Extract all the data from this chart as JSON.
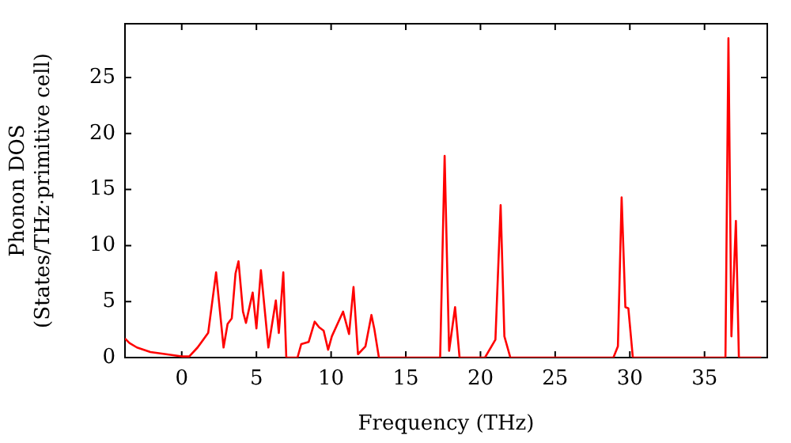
{
  "chart_data": {
    "type": "line",
    "xlabel": "Frequency (THz)",
    "ylabel": "Phonon DOS\n(States/THz·primitive cell)",
    "xlim": [
      -3.8,
      39.2
    ],
    "ylim": [
      0,
      29.8
    ],
    "xticks": [
      0,
      5,
      10,
      15,
      20,
      25,
      30,
      35
    ],
    "yticks": [
      0,
      5,
      10,
      15,
      20,
      25
    ],
    "grid": false,
    "legend": false,
    "marker": "none",
    "line_style": "solid",
    "series": [
      {
        "color": "#ff0000",
        "x": [
          -3.8,
          -3.5,
          -3.0,
          -2.1,
          0,
          0.5,
          1.06,
          1.77,
          2.3,
          2.8,
          3.07,
          3.35,
          3.6,
          3.8,
          4.1,
          4.3,
          4.75,
          5.0,
          5.3,
          5.8,
          6.3,
          6.5,
          6.8,
          7.0,
          7.75,
          8.0,
          8.5,
          8.9,
          9.2,
          9.5,
          9.8,
          10.05,
          10.8,
          11.2,
          11.5,
          11.8,
          12.3,
          12.7,
          12.9,
          13.2,
          17.3,
          17.6,
          17.9,
          18.3,
          18.6,
          20.3,
          21.0,
          21.35,
          21.6,
          22.0,
          28.9,
          29.2,
          29.45,
          29.7,
          29.9,
          30.2,
          36.4,
          36.6,
          36.8,
          37.1,
          37.3,
          38.8
        ],
        "values": [
          1.7,
          1.3,
          0.9,
          0.5,
          0.1,
          0.1,
          0.9,
          2.2,
          7.6,
          0.9,
          3.0,
          3.5,
          7.5,
          8.6,
          4.1,
          3.1,
          5.8,
          2.6,
          7.8,
          0.9,
          5.1,
          2.2,
          7.6,
          0,
          0,
          1.2,
          1.4,
          3.2,
          2.7,
          2.4,
          0.7,
          1.9,
          4.1,
          2.1,
          6.3,
          0.3,
          1.0,
          3.8,
          2.5,
          0,
          0,
          18.0,
          0.6,
          4.5,
          0,
          0,
          1.6,
          13.6,
          1.9,
          0,
          0,
          1.0,
          14.3,
          4.5,
          4.4,
          0,
          0,
          28.5,
          1.9,
          12.2,
          0,
          0
        ]
      }
    ]
  }
}
